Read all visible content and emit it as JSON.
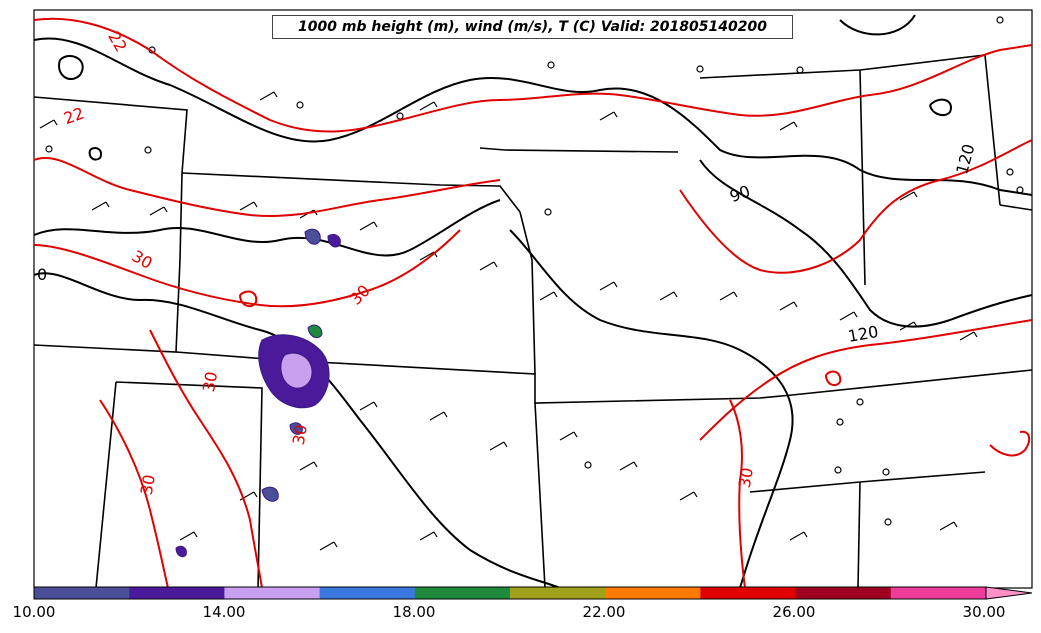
{
  "title": "1000 mb height (m), wind (m/s), T (C) Valid: 201805140200",
  "contour_labels": {
    "temp": [
      "22",
      "22",
      "30",
      "30",
      "30",
      "30",
      "30",
      "30",
      "30"
    ],
    "height": [
      "0",
      "90",
      "120",
      "120"
    ]
  },
  "colorbar": {
    "tick_labels": [
      "10.00",
      "14.00",
      "18.00",
      "22.00",
      "26.00",
      "30.00"
    ],
    "colors": [
      "#4b4f9a",
      "#4a1a9b",
      "#c9a0f0",
      "#3a78e0",
      "#1f8a3c",
      "#a0a01a",
      "#ff7a00",
      "#e00000",
      "#a00020",
      "#ee3c9a",
      "#ff90c8"
    ]
  }
}
